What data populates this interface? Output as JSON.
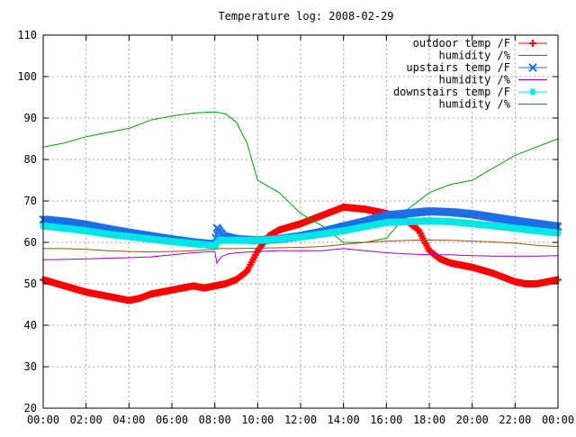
{
  "chart_data": {
    "type": "line",
    "title": "Temperature log: 2008-02-29",
    "xlabel": "",
    "ylabel": "",
    "xlim": [
      0,
      24
    ],
    "ylim": [
      20,
      110
    ],
    "grid": true,
    "legend_position": "top-right",
    "x_tick_labels": [
      "00:00",
      "02:00",
      "04:00",
      "06:00",
      "08:00",
      "10:00",
      "12:00",
      "14:00",
      "16:00",
      "18:00",
      "20:00",
      "22:00",
      "00:00"
    ],
    "y_tick_labels": [
      "20",
      "30",
      "40",
      "50",
      "60",
      "70",
      "80",
      "90",
      "100",
      "110"
    ],
    "series": [
      {
        "name": "outdoor temp /F",
        "color": "#ff0000",
        "marker": "plus",
        "x": [
          0,
          1,
          2,
          3,
          3.5,
          4,
          4.5,
          5,
          6,
          7,
          7.5,
          8,
          8.5,
          9,
          9.5,
          10,
          10.5,
          11,
          12,
          13,
          14,
          15,
          16,
          16.5,
          17,
          17.5,
          18,
          18.5,
          19,
          20,
          21,
          22,
          22.5,
          23,
          24
        ],
        "y": [
          51,
          49.5,
          48,
          47,
          46.5,
          46,
          46.5,
          47.5,
          48.5,
          49.5,
          49,
          49.5,
          50,
          51,
          53,
          58,
          61.5,
          63,
          64.5,
          66.5,
          68.5,
          68,
          67,
          66,
          65,
          63,
          58,
          56,
          55,
          54,
          52.5,
          50.5,
          50,
          50,
          51
        ]
      },
      {
        "name": "humidity /%",
        "color": "#00a000",
        "marker": "none",
        "x": [
          0,
          1,
          2,
          3,
          4,
          5,
          6,
          7,
          8,
          8.5,
          9,
          9.5,
          10,
          11,
          12,
          13,
          14,
          15,
          16,
          16.5,
          17,
          18,
          19,
          20,
          21,
          22,
          23,
          24
        ],
        "y": [
          83,
          84,
          85.5,
          86.5,
          87.5,
          89.5,
          90.5,
          91.2,
          91.5,
          91,
          89,
          84,
          75,
          72,
          67,
          64,
          60,
          60,
          61,
          64,
          68,
          72,
          74,
          75,
          78,
          81,
          83,
          85
        ]
      },
      {
        "name": "upstairs temp /F",
        "color": "#1e6ee6",
        "marker": "x",
        "x": [
          0,
          1,
          2,
          3,
          4,
          5,
          6,
          7,
          8,
          8.1,
          8.4,
          9,
          10,
          11,
          12,
          13,
          14,
          15,
          16,
          17,
          18,
          19,
          20,
          21,
          22,
          23,
          24
        ],
        "y": [
          65.5,
          65,
          64.2,
          63.2,
          62.3,
          61.5,
          60.7,
          60,
          59.5,
          63.5,
          61.5,
          60.8,
          60.5,
          60.8,
          61.5,
          62.5,
          63.8,
          65,
          66.5,
          67,
          67.5,
          67.3,
          66.8,
          66,
          65.2,
          64.5,
          63.8
        ]
      },
      {
        "name": "humidity /%",
        "color": "#a000c8",
        "marker": "none",
        "x": [
          0,
          1,
          2,
          3,
          4,
          5,
          6,
          7,
          8,
          8.1,
          8.3,
          8.6,
          9,
          10,
          11,
          12,
          13,
          14,
          15,
          16,
          17,
          18,
          19,
          20,
          21,
          22,
          23,
          24
        ],
        "y": [
          55.8,
          55.9,
          56,
          56.2,
          56.3,
          56.5,
          57,
          57.5,
          57.8,
          55,
          56.5,
          57.2,
          57.5,
          57.8,
          58,
          58,
          58,
          58.5,
          58,
          57.5,
          57.2,
          57,
          57,
          56.8,
          56.7,
          56.7,
          56.7,
          56.8
        ]
      },
      {
        "name": "downstairs temp /F",
        "color": "#00e6e6",
        "marker": "asterisk",
        "x": [
          0,
          1,
          2,
          3,
          4,
          5,
          6,
          7,
          8,
          8.2,
          9,
          10,
          11,
          12,
          13,
          14,
          15,
          16,
          17,
          18,
          19,
          20,
          21,
          22,
          23,
          24
        ],
        "y": [
          64,
          63.4,
          62.8,
          62,
          61.4,
          60.8,
          60.2,
          59.7,
          59.2,
          60.5,
          60.5,
          60.5,
          60.8,
          61.3,
          62,
          62.8,
          63.8,
          64.8,
          65,
          65.2,
          65,
          64.5,
          64,
          63.4,
          62.8,
          62.3
        ]
      },
      {
        "name": "humidity /%",
        "color": "#a0500a",
        "marker": "none",
        "x": [
          0,
          1,
          2,
          3,
          4,
          5,
          6,
          7,
          8,
          8.2,
          9,
          10,
          11,
          12,
          13,
          14,
          15,
          16,
          17,
          18,
          19,
          20,
          21,
          22,
          23,
          24
        ],
        "y": [
          58.5,
          58.5,
          58.3,
          58,
          57.8,
          57.7,
          57.8,
          58,
          58.3,
          58.5,
          58.5,
          58.6,
          58.7,
          58.8,
          59,
          59.5,
          60,
          60.3,
          60.5,
          60.6,
          60.5,
          60.3,
          60.1,
          59.8,
          59.3,
          59
        ]
      }
    ]
  }
}
